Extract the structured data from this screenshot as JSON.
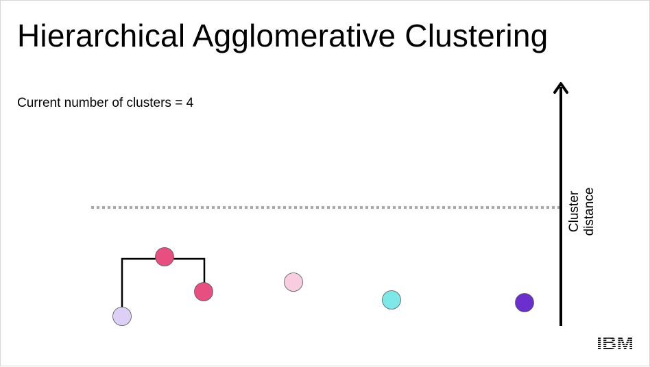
{
  "slide": {
    "title": "Hierarchical Agglomerative Clustering",
    "status_text": "Current number of clusters = 4",
    "axis_label_line1": "Cluster",
    "axis_label_line2": "distance",
    "logo_text": "IBM"
  },
  "colors": {
    "lavender_point": "#dcd0f7",
    "magenta_point": "#e84f81",
    "light_pink_point": "#f9cde0",
    "cyan_point": "#7ee8e8",
    "purple_point": "#6a2fcc",
    "threshold_line": "#a8a8a8",
    "dendrogram_line": "#000000"
  }
}
